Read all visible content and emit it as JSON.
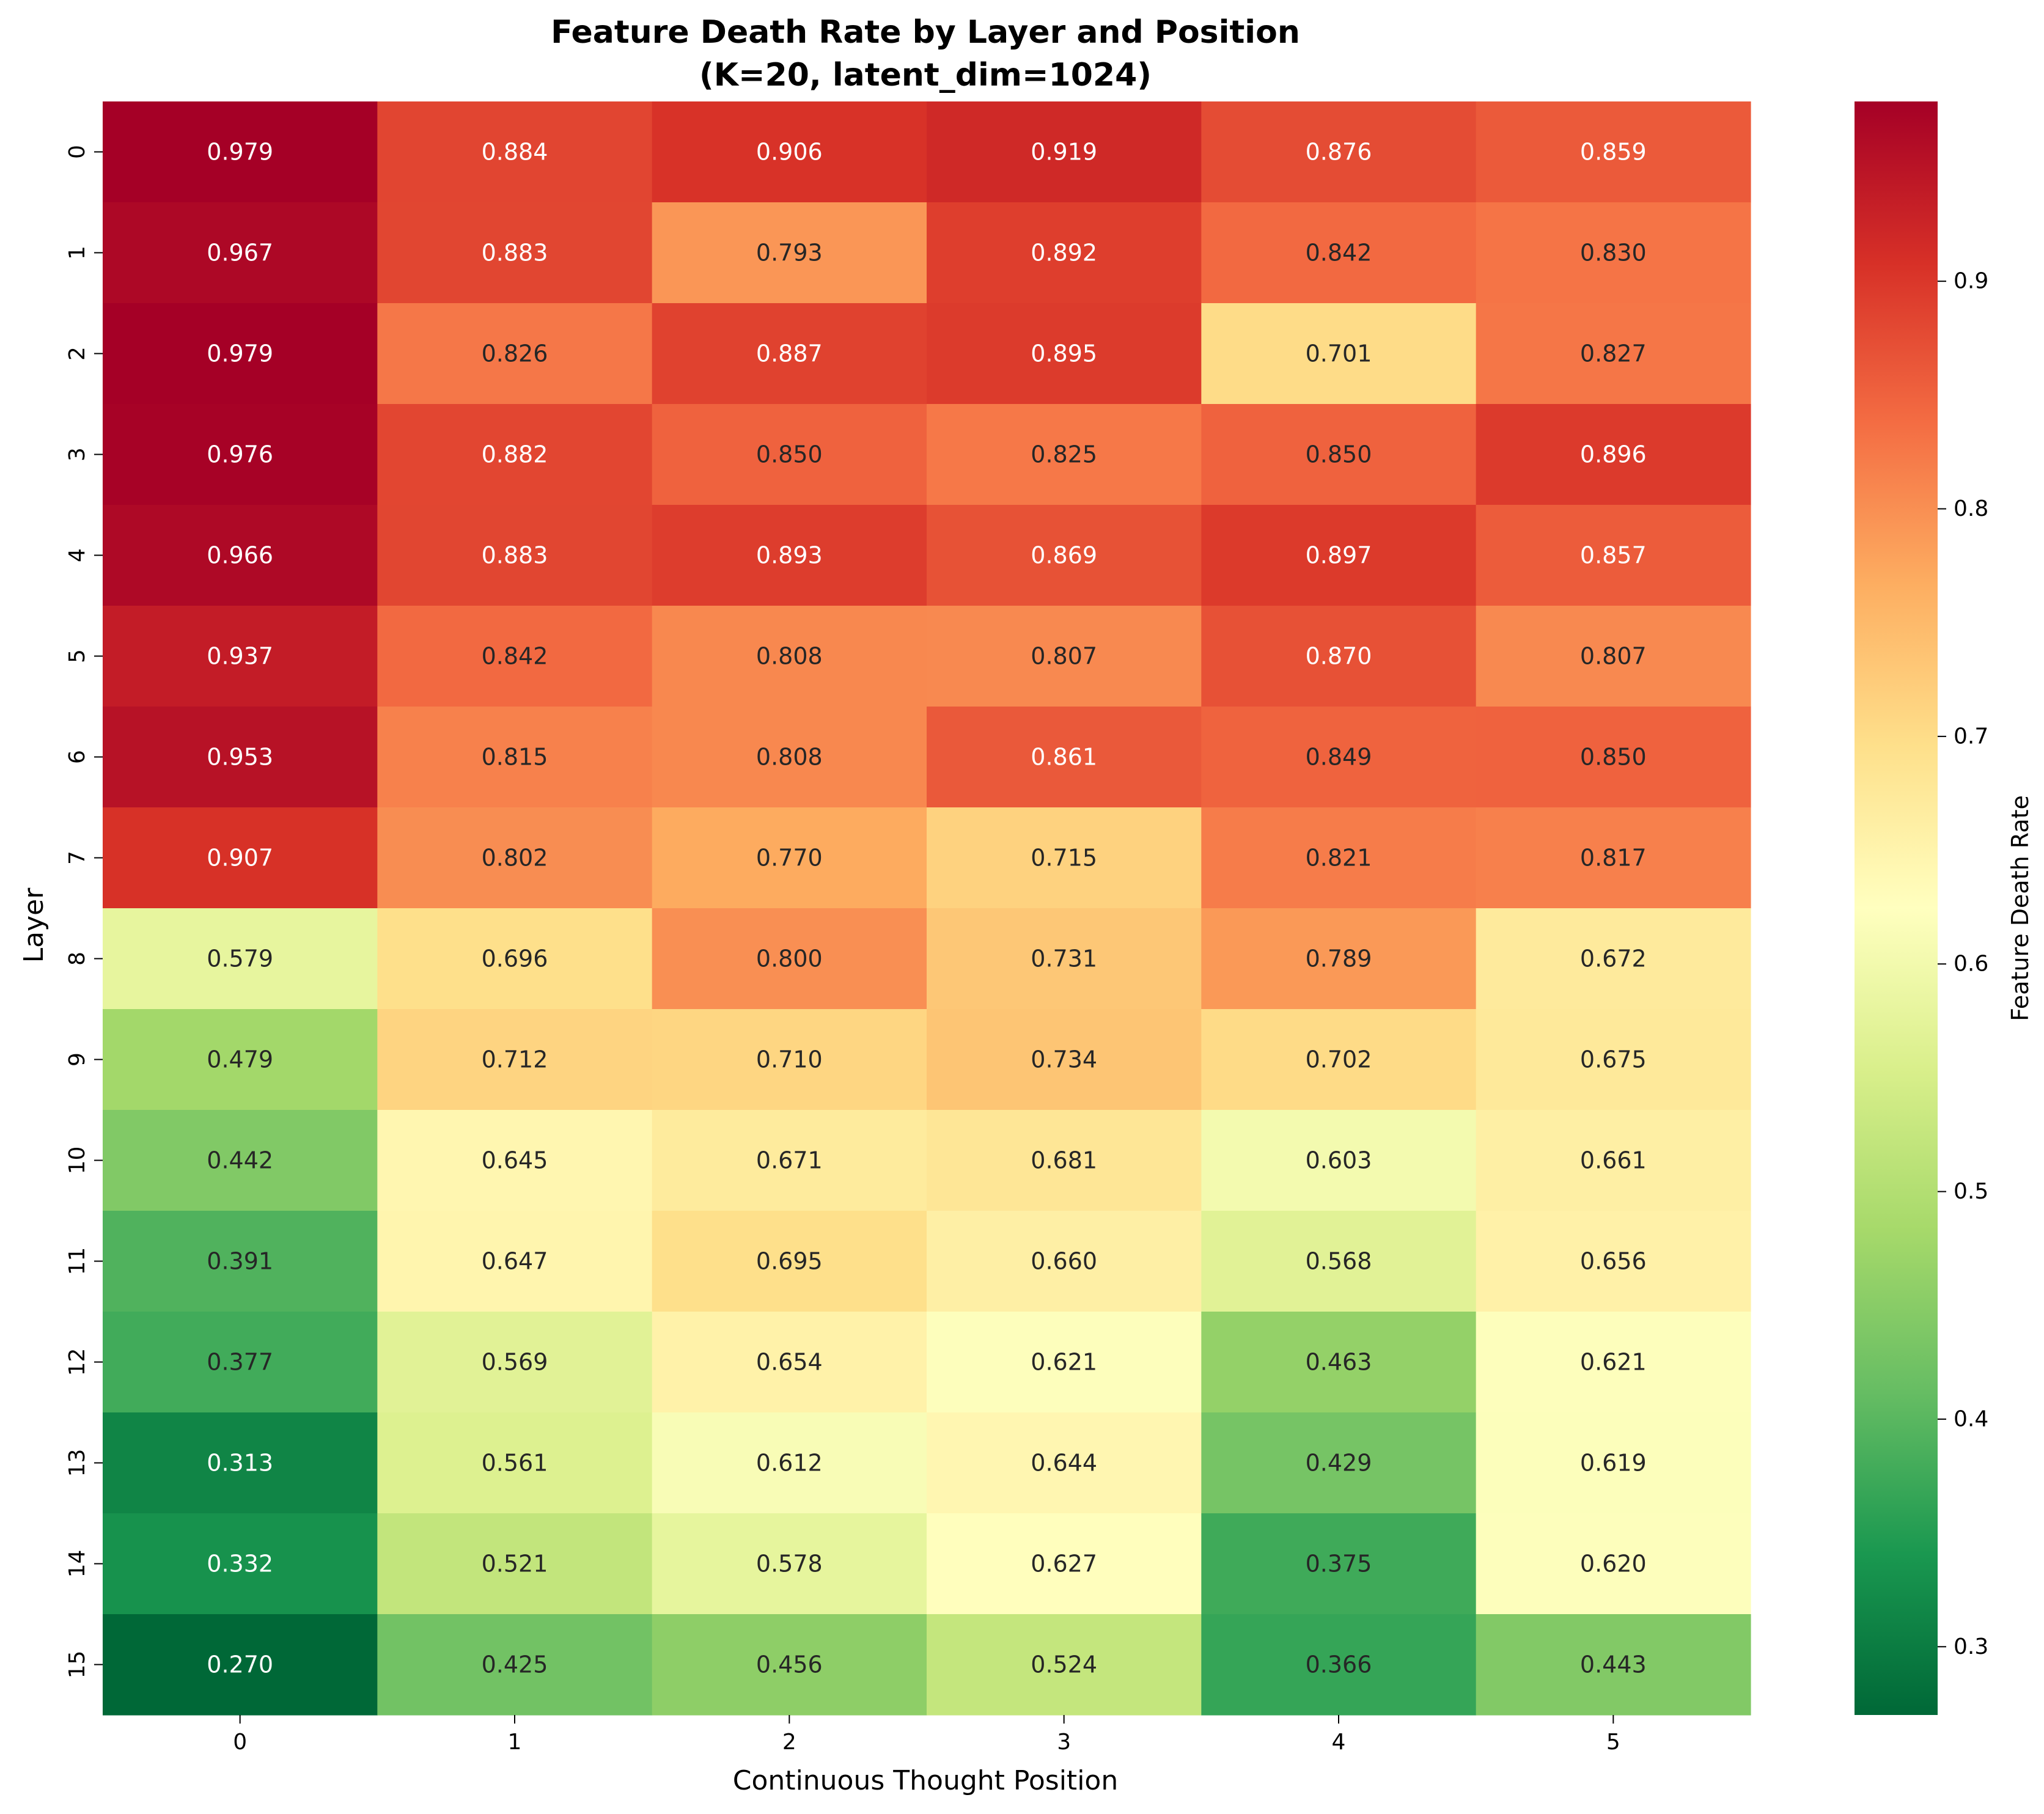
{
  "chart_data": {
    "type": "heatmap",
    "title": "Feature Death Rate by Layer and Position",
    "subtitle": "(K=20, latent_dim=1024)",
    "xlabel": "Continuous Thought Position",
    "ylabel": "Layer",
    "x_categories": [
      "0",
      "1",
      "2",
      "3",
      "4",
      "5"
    ],
    "y_categories": [
      "0",
      "1",
      "2",
      "3",
      "4",
      "5",
      "6",
      "7",
      "8",
      "9",
      "10",
      "11",
      "12",
      "13",
      "14",
      "15"
    ],
    "values": [
      [
        0.979,
        0.884,
        0.906,
        0.919,
        0.876,
        0.859
      ],
      [
        0.967,
        0.883,
        0.793,
        0.892,
        0.842,
        0.83
      ],
      [
        0.979,
        0.826,
        0.887,
        0.895,
        0.701,
        0.827
      ],
      [
        0.976,
        0.882,
        0.85,
        0.825,
        0.85,
        0.896
      ],
      [
        0.966,
        0.883,
        0.893,
        0.869,
        0.897,
        0.857
      ],
      [
        0.937,
        0.842,
        0.808,
        0.807,
        0.87,
        0.807
      ],
      [
        0.953,
        0.815,
        0.808,
        0.861,
        0.849,
        0.85
      ],
      [
        0.907,
        0.802,
        0.77,
        0.715,
        0.821,
        0.817
      ],
      [
        0.579,
        0.696,
        0.8,
        0.731,
        0.789,
        0.672
      ],
      [
        0.479,
        0.712,
        0.71,
        0.734,
        0.702,
        0.675
      ],
      [
        0.442,
        0.645,
        0.671,
        0.681,
        0.603,
        0.661
      ],
      [
        0.391,
        0.647,
        0.695,
        0.66,
        0.568,
        0.656
      ],
      [
        0.377,
        0.569,
        0.654,
        0.621,
        0.463,
        0.621
      ],
      [
        0.313,
        0.561,
        0.612,
        0.644,
        0.429,
        0.619
      ],
      [
        0.332,
        0.521,
        0.578,
        0.627,
        0.375,
        0.62
      ],
      [
        0.27,
        0.425,
        0.456,
        0.524,
        0.366,
        0.443
      ]
    ],
    "value_format": "3 decimals",
    "colormap": "RdYlGn_r",
    "vmin": 0.27,
    "vmax": 0.979,
    "grid": false,
    "colorbar": {
      "label": "Feature Death Rate",
      "ticks": [
        "0.3",
        "0.4",
        "0.5",
        "0.6",
        "0.7",
        "0.8",
        "0.9"
      ],
      "placement": "right"
    },
    "colors": {
      "low": "#006837",
      "mid": "#ffffbf",
      "high": "#a50026",
      "text_light": "#ffffff",
      "text_dark": "#262626"
    }
  }
}
